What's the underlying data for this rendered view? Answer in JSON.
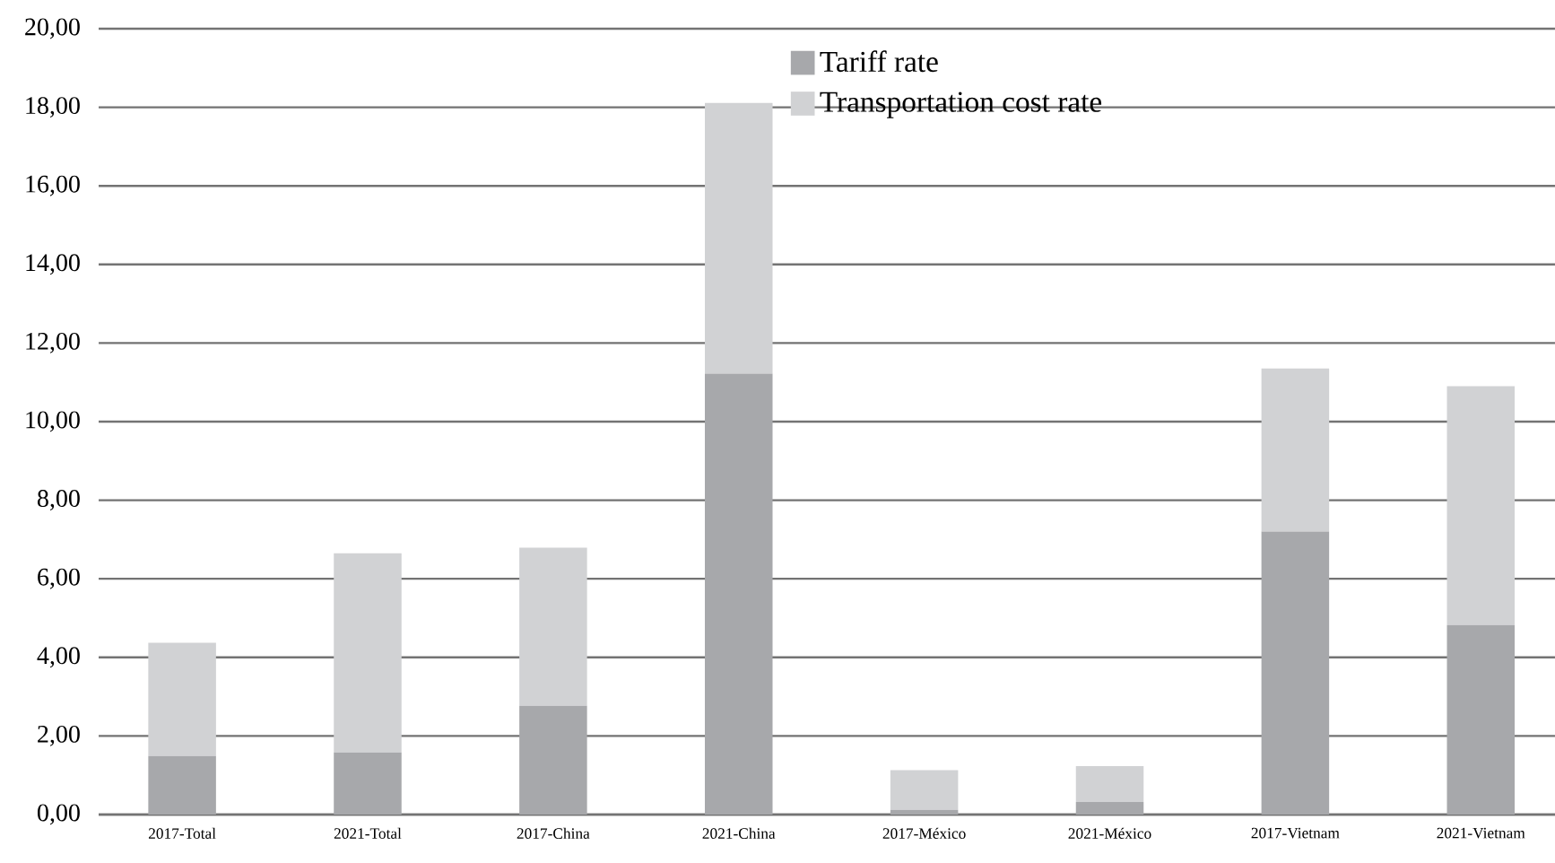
{
  "chart_data": {
    "type": "bar",
    "stacked": true,
    "categories": [
      "2017-Total",
      "2021-Total",
      "2017-China",
      "2021-China",
      "2017-México",
      "2021-México",
      "2017-Vietnam",
      "2021-Vietnam"
    ],
    "series": [
      {
        "name": "Tariff rate",
        "color": "#a7a8ab",
        "values": [
          1.49,
          1.58,
          2.77,
          11.22,
          0.12,
          0.32,
          7.2,
          4.82
        ]
      },
      {
        "name": "Transportation cost rate",
        "color": "#d1d2d4",
        "values": [
          2.88,
          5.07,
          4.02,
          6.89,
          1.01,
          0.91,
          4.15,
          6.08
        ]
      }
    ],
    "ylim": [
      0,
      20
    ],
    "yticks": [
      {
        "value": 0,
        "label": "0,00"
      },
      {
        "value": 2,
        "label": "2,00"
      },
      {
        "value": 4,
        "label": "4,00"
      },
      {
        "value": 6,
        "label": "6,00"
      },
      {
        "value": 8,
        "label": "8,00"
      },
      {
        "value": 10,
        "label": "10,00"
      },
      {
        "value": 12,
        "label": "12,00"
      },
      {
        "value": 14,
        "label": "14,00"
      },
      {
        "value": 16,
        "label": "16,00"
      },
      {
        "value": 18,
        "label": "18,00"
      },
      {
        "value": 20,
        "label": "20,00"
      }
    ],
    "grid": "y",
    "legend": "top"
  }
}
